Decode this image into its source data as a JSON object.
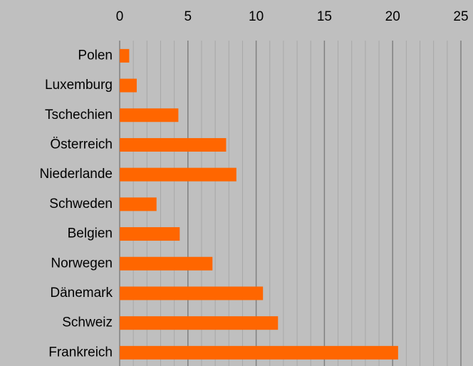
{
  "chart_data": {
    "type": "barh",
    "categories": [
      "Polen",
      "Luxemburg",
      "Tschechien",
      "Österreich",
      "Niederlande",
      "Schweden",
      "Belgien",
      "Norwegen",
      "Dänemark",
      "Schweiz",
      "Frankreich"
    ],
    "values": [
      0.7,
      1.25,
      4.3,
      7.8,
      8.55,
      2.7,
      4.4,
      6.8,
      10.5,
      11.6,
      20.4
    ],
    "color": "#ff6600",
    "xlim": [
      0,
      25
    ],
    "xticks": [
      0,
      5,
      10,
      15,
      20,
      25
    ],
    "grid": true,
    "minor_grid": 1
  }
}
